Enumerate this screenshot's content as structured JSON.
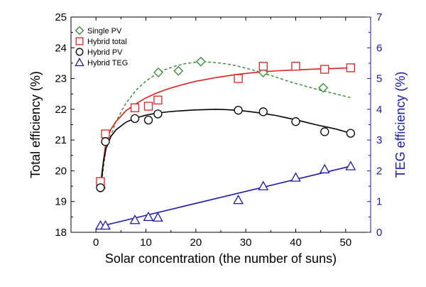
{
  "chart_data": {
    "type": "scatter",
    "xlabel": "Solar concentration (the number of suns)",
    "ylabel_left": "Total efficiency (%)",
    "ylabel_right": "TEG efficiency (%)",
    "xlim": [
      -5,
      55
    ],
    "ylim_left": [
      18,
      25
    ],
    "ylim_right": [
      0,
      7
    ],
    "x_ticks": [
      0,
      10,
      20,
      30,
      40,
      50
    ],
    "y_ticks_left": [
      18,
      19,
      20,
      21,
      22,
      23,
      24,
      25
    ],
    "y_ticks_right": [
      0,
      1,
      2,
      3,
      4,
      5,
      6,
      7
    ],
    "legend_position": "top-left",
    "colors": {
      "single_pv": "#2e8b2e",
      "hybrid_total": "#dd2222",
      "hybrid_pv": "#000000",
      "hybrid_teg": "#1a1ab0",
      "right_axis": "#1a1aa0"
    },
    "series": [
      {
        "name": "Single PV",
        "marker": "diamond",
        "axis": "left",
        "x": [
          1,
          12.5,
          16.5,
          21,
          33.5,
          45.5
        ],
        "y": [
          19.45,
          23.2,
          23.25,
          23.55,
          23.2,
          22.7
        ],
        "fit_x": [
          1,
          2,
          4,
          6,
          8,
          10,
          12,
          14,
          16,
          18,
          20,
          22,
          24,
          26,
          28,
          30,
          32,
          34,
          36,
          38,
          40,
          42,
          44,
          46,
          48,
          50,
          51
        ],
        "fit_y": [
          19.5,
          20.7,
          21.6,
          22.2,
          22.62,
          22.92,
          23.14,
          23.3,
          23.41,
          23.49,
          23.53,
          23.54,
          23.52,
          23.48,
          23.42,
          23.34,
          23.25,
          23.15,
          23.05,
          22.94,
          22.84,
          22.75,
          22.66,
          22.58,
          22.5,
          22.42,
          22.38
        ]
      },
      {
        "name": "Hybrid total",
        "marker": "square",
        "axis": "left",
        "x": [
          0.9,
          1.9,
          7.8,
          10.5,
          12.4,
          28.5,
          33.5,
          40,
          45.8,
          51
        ],
        "y": [
          19.65,
          21.2,
          22.05,
          22.1,
          22.3,
          23.0,
          23.4,
          23.4,
          23.3,
          23.35
        ],
        "fit_x": [
          1,
          2,
          3,
          4,
          6,
          8,
          10,
          12,
          14,
          16,
          18,
          20,
          24,
          28,
          32,
          36,
          40,
          44,
          48,
          51
        ],
        "fit_y": [
          19.7,
          20.95,
          21.35,
          21.6,
          21.95,
          22.18,
          22.37,
          22.52,
          22.64,
          22.74,
          22.83,
          22.91,
          23.03,
          23.13,
          23.2,
          23.25,
          23.28,
          23.31,
          23.33,
          23.35
        ]
      },
      {
        "name": "Hybrid PV",
        "marker": "circle",
        "axis": "left",
        "x": [
          0.9,
          1.9,
          7.8,
          10.5,
          12.4,
          28.5,
          33.5,
          40,
          45.8,
          51
        ],
        "y": [
          19.45,
          20.95,
          21.7,
          21.65,
          21.85,
          21.97,
          21.92,
          21.6,
          21.27,
          21.22
        ],
        "fit_x": [
          1,
          1.5,
          2,
          3,
          4,
          6,
          8,
          10,
          12,
          14,
          16,
          18,
          20,
          22,
          24,
          26,
          28,
          30,
          32,
          34,
          36,
          38,
          40,
          42,
          44,
          46,
          48,
          50,
          51
        ],
        "fit_y": [
          19.5,
          20.3,
          20.72,
          21.12,
          21.33,
          21.58,
          21.72,
          21.81,
          21.87,
          21.91,
          21.94,
          21.96,
          21.98,
          21.99,
          22.0,
          21.99,
          21.97,
          21.94,
          21.9,
          21.85,
          21.8,
          21.73,
          21.66,
          21.58,
          21.5,
          21.43,
          21.36,
          21.27,
          21.22
        ]
      },
      {
        "name": "Hybrid TEG",
        "marker": "triangle",
        "axis": "right",
        "x": [
          0.9,
          1.9,
          7.8,
          10.5,
          12.4,
          28.5,
          33.5,
          40,
          45.8,
          51
        ],
        "y": [
          0.22,
          0.22,
          0.4,
          0.5,
          0.48,
          1.05,
          1.5,
          1.78,
          2.05,
          2.15
        ],
        "fit_x": [
          1,
          51
        ],
        "fit_y": [
          0.2,
          2.15
        ]
      }
    ]
  }
}
